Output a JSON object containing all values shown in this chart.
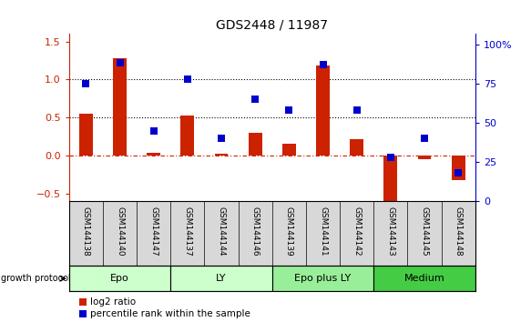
{
  "title": "GDS2448 / 11987",
  "samples": [
    "GSM144138",
    "GSM144140",
    "GSM144147",
    "GSM144137",
    "GSM144144",
    "GSM144146",
    "GSM144139",
    "GSM144141",
    "GSM144142",
    "GSM144143",
    "GSM144145",
    "GSM144148"
  ],
  "log2_ratio": [
    0.55,
    1.28,
    0.04,
    0.53,
    0.02,
    0.3,
    0.16,
    1.18,
    0.22,
    -0.62,
    -0.05,
    -0.32
  ],
  "percentile_rank": [
    75,
    88,
    45,
    78,
    40,
    65,
    58,
    87,
    58,
    28,
    40,
    18
  ],
  "groups": [
    {
      "label": "Epo",
      "start": 0,
      "end": 3,
      "color": "#ccffcc"
    },
    {
      "label": "LY",
      "start": 3,
      "end": 6,
      "color": "#ccffcc"
    },
    {
      "label": "Epo plus LY",
      "start": 6,
      "end": 9,
      "color": "#99ee99"
    },
    {
      "label": "Medium",
      "start": 9,
      "end": 12,
      "color": "#44cc44"
    }
  ],
  "bar_color": "#cc2200",
  "dot_color": "#0000cc",
  "ylim_left": [
    -0.6,
    1.6
  ],
  "ylim_right": [
    0,
    106.67
  ],
  "y_ticks_left": [
    -0.5,
    0.0,
    0.5,
    1.0,
    1.5
  ],
  "y_ticks_right": [
    0,
    25,
    50,
    75,
    100
  ],
  "y_ticks_right_labels": [
    "0",
    "25",
    "50",
    "75",
    "100%"
  ],
  "hlines_dotted": [
    0.5,
    1.0
  ],
  "hline_dashdot": 0.0,
  "legend_items": [
    "log2 ratio",
    "percentile rank within the sample"
  ],
  "growth_protocol_label": "growth protocol"
}
